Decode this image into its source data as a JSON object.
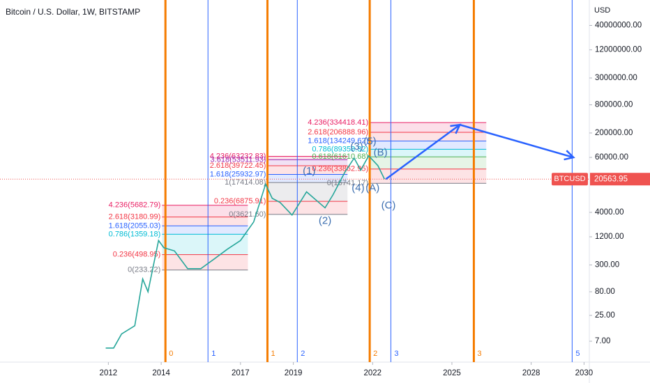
{
  "chart_data": {
    "type": "line",
    "title": "Bitcoin / U.S. Dollar, 1W, BITSTAMP",
    "y_axis_label": "USD",
    "log_scale": true,
    "xlim": [
      2007.9,
      2030.2
    ],
    "ylim": [
      2.5,
      140000000
    ],
    "xticks": [
      2012,
      2014,
      2017,
      2019,
      2022,
      2025,
      2028,
      2030
    ],
    "yticks": [
      {
        "value": 40000000,
        "label": "40000000.00"
      },
      {
        "value": 12000000,
        "label": "12000000.00"
      },
      {
        "value": 3000000,
        "label": "3000000.00"
      },
      {
        "value": 800000,
        "label": "800000.00"
      },
      {
        "value": 200000,
        "label": "200000.00"
      },
      {
        "value": 60000,
        "label": "60000.00"
      },
      {
        "value": 4000,
        "label": "4000.00"
      },
      {
        "value": 1200,
        "label": "1200.00"
      },
      {
        "value": 300,
        "label": "300.00"
      },
      {
        "value": 80,
        "label": "80.00"
      },
      {
        "value": 25,
        "label": "25.00"
      },
      {
        "value": 7,
        "label": "7.00"
      }
    ],
    "series": [
      {
        "name": "BTCUSD",
        "color": "#26a69a",
        "x": [
          2011.9,
          2012.2,
          2012.5,
          2013.0,
          2013.3,
          2013.5,
          2013.9,
          2014.1,
          2014.5,
          2015.0,
          2015.5,
          2016.0,
          2016.5,
          2017.0,
          2017.5,
          2017.95,
          2018.2,
          2018.5,
          2018.95,
          2019.5,
          2020.2,
          2020.5,
          2020.95,
          2021.3,
          2021.55,
          2021.85,
          2022.2,
          2022.45
        ],
        "values": [
          5,
          5,
          10,
          15,
          150,
          80,
          1000,
          700,
          600,
          250,
          250,
          400,
          650,
          1000,
          2500,
          16000,
          8000,
          6500,
          3500,
          11000,
          5000,
          9500,
          29000,
          58000,
          32000,
          65000,
          40000,
          20563.95
        ]
      }
    ],
    "last_price": 20563.95,
    "last_price_color": "#ef5350",
    "cycle_lines": [
      {
        "x": 2014.16,
        "label": "0",
        "color": "#f57c00"
      },
      {
        "x": 2018.02,
        "label": "1",
        "color": "#f57c00"
      },
      {
        "x": 2021.89,
        "label": "2",
        "color": "#f57c00"
      },
      {
        "x": 2025.83,
        "label": "3",
        "color": "#f57c00"
      },
      {
        "x": 2015.77,
        "label": "1",
        "color": "#2962ff"
      },
      {
        "x": 2019.15,
        "label": "2",
        "color": "#2962ff"
      },
      {
        "x": 2022.69,
        "label": "3",
        "color": "#2962ff"
      },
      {
        "x": 2029.55,
        "label": "5",
        "color": "#2962ff"
      }
    ],
    "fib_sets": [
      {
        "x": [
          2014.03,
          2017.28
        ],
        "levels": [
          {
            "label": "4.236(5682.79)",
            "price": 5682.79,
            "color": "#e91e63"
          },
          {
            "label": "2.618(3180.99)",
            "price": 3180.99,
            "color": "#f23645"
          },
          {
            "label": "1.618(2055.03)",
            "price": 2055.03,
            "color": "#2962ff"
          },
          {
            "label": "0.786(1359.18)",
            "price": 1359.18,
            "color": "#00bcd4"
          },
          {
            "label": "0.236(498.95)",
            "price": 498.95,
            "color": "#f23645"
          },
          {
            "label": "0(233.22)",
            "price": 233.22,
            "color": "#787b86"
          }
        ]
      },
      {
        "x": [
          2018.02,
          2021.05
        ],
        "levels": [
          {
            "label": "4.236(63232.83)",
            "price": 63232.83,
            "color": "#e91e63"
          },
          {
            "label": "3.618(53511.93)",
            "price": 53511.93,
            "color": "#9c27b0"
          },
          {
            "label": "2.618(39722.45)",
            "price": 39722.45,
            "color": "#f23645"
          },
          {
            "label": "1.618(25932.97)",
            "price": 25932.97,
            "color": "#2962ff"
          },
          {
            "label": "1(17414.08)",
            "price": 17414.08,
            "color": "#787b86"
          },
          {
            "label": "0.236(6875.91)",
            "price": 6875.91,
            "color": "#f23645"
          },
          {
            "label": "0(3621.60)",
            "price": 3621.6,
            "color": "#787b86"
          }
        ]
      },
      {
        "x": [
          2021.89,
          2026.3
        ],
        "levels": [
          {
            "label": "4.236(334418.41)",
            "price": 334418.41,
            "color": "#e91e63"
          },
          {
            "label": "2.618(206888.96)",
            "price": 206888.96,
            "color": "#f23645"
          },
          {
            "label": "1.618(134249.62)",
            "price": 134249.62,
            "color": "#2962ff"
          },
          {
            "label": "0.786(89358.32)",
            "price": 89358.32,
            "color": "#00bcd4"
          },
          {
            "label": "0.618(61610.68)",
            "price": 61610.68,
            "color": "#4caf50"
          },
          {
            "label": "0.236(33862.95)",
            "price": 33862.95,
            "color": "#f23645"
          },
          {
            "label": "0(16741.17)",
            "price": 16741.17,
            "color": "#787b86"
          }
        ]
      }
    ],
    "wave_labels": [
      {
        "text": "(1)",
        "x": 2019.6,
        "y": 30000
      },
      {
        "text": "(2)",
        "x": 2020.2,
        "y": 2600
      },
      {
        "text": "(3)",
        "x": 2021.4,
        "y": 100000
      },
      {
        "text": "(4)",
        "x": 2021.45,
        "y": 13000
      },
      {
        "text": "(5)",
        "x": 2021.9,
        "y": 130000
      },
      {
        "text": "(A)",
        "x": 2022.0,
        "y": 13000
      },
      {
        "text": "(B)",
        "x": 2022.3,
        "y": 75000
      },
      {
        "text": "(C)",
        "x": 2022.6,
        "y": 5500
      }
    ],
    "projection": {
      "color": "#2962ff",
      "x": [
        2022.5,
        2025.3,
        2029.6
      ],
      "y": [
        20563.95,
        300000,
        60000
      ]
    }
  }
}
